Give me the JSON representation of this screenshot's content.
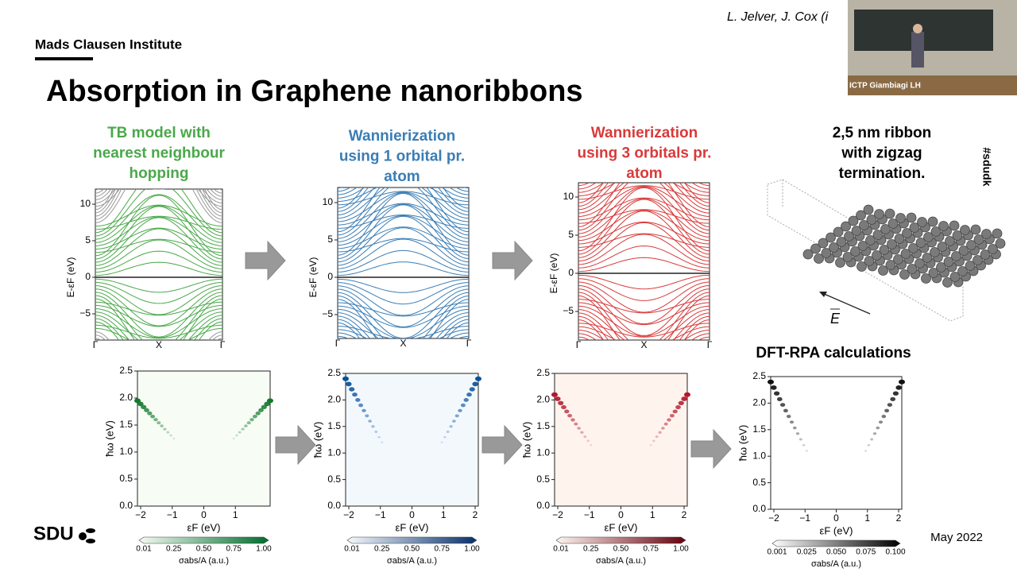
{
  "header": {
    "institute": "Mads Clausen Institute",
    "title": "Absorption in Graphene nanoribbons",
    "citation": "L. Jelver, J. Cox (i",
    "video_caption": "ICTP Giambiagi LH",
    "hashtag": "#sdudk",
    "logo": "SDU",
    "date": "May 2022"
  },
  "column_titles": [
    [
      "TB model with",
      "nearest neighbour",
      "hopping"
    ],
    [
      "Wannierization",
      "using 1 orbital pr.",
      "atom"
    ],
    [
      "Wannierization",
      "using 3 orbitals pr.",
      "atom"
    ],
    [
      "2,5 nm ribbon",
      "with zigzag",
      "termination."
    ]
  ],
  "band_plots": [
    {
      "yticks": [
        "10",
        "5",
        "0",
        "−5"
      ],
      "xticks": [
        "Γ",
        "X",
        "Γ"
      ],
      "y_label": "E-εF (eV)"
    },
    {
      "yticks": [
        "10",
        "5",
        "0",
        "−5"
      ],
      "xticks": [
        "Γ",
        "X",
        "Γ"
      ],
      "y_label": "E-εF (eV)"
    },
    {
      "yticks": [
        "10",
        "5",
        "0",
        "−5"
      ],
      "xticks": [
        "Γ",
        "X",
        "Γ"
      ],
      "y_label": "E-εF (eV)"
    }
  ],
  "ribbon": {
    "field_label": "E"
  },
  "dft_heading": "DFT-RPA calculations",
  "absorption_plots": [
    {
      "yticks": [
        "0.0",
        "0.5",
        "1.0",
        "1.5",
        "2.0",
        "2.5"
      ],
      "xticks": [
        "−2",
        "−1",
        "0",
        "1"
      ],
      "x_label": "εF (eV)",
      "y_label": "ħω (eV)",
      "colorbar_ticks": [
        "0.01",
        "0.25",
        "0.50",
        "0.75",
        "1.00"
      ],
      "colorbar_label": "σabs/A (a.u.)"
    },
    {
      "yticks": [
        "0.0",
        "0.5",
        "1.0",
        "1.5",
        "2.0",
        "2.5"
      ],
      "xticks": [
        "−2",
        "−1",
        "0",
        "1",
        "2"
      ],
      "x_label": "εF (eV)",
      "y_label": "ħω (eV)",
      "colorbar_ticks": [
        "0.01",
        "0.25",
        "0.50",
        "0.75",
        "1.00"
      ],
      "colorbar_label": "σabs/A (a.u.)"
    },
    {
      "yticks": [
        "0.0",
        "0.5",
        "1.0",
        "1.5",
        "2.0",
        "2.5"
      ],
      "xticks": [
        "−2",
        "−1",
        "0",
        "1",
        "2"
      ],
      "x_label": "εF (eV)",
      "y_label": "ħω (eV)",
      "colorbar_ticks": [
        "0.01",
        "0.25",
        "0.50",
        "0.75",
        "1.00"
      ],
      "colorbar_label": "σabs/A (a.u.)"
    },
    {
      "yticks": [
        "0.0",
        "0.5",
        "1.0",
        "1.5",
        "2.0",
        "2.5"
      ],
      "xticks": [
        "−2",
        "−1",
        "0",
        "1",
        "2"
      ],
      "x_label": "εF (eV)",
      "y_label": "ħω (eV)",
      "colorbar_ticks": [
        "0.001",
        "0.025",
        "0.050",
        "0.075",
        "0.100"
      ],
      "colorbar_label": "σabs/A (a.u.)"
    }
  ]
}
